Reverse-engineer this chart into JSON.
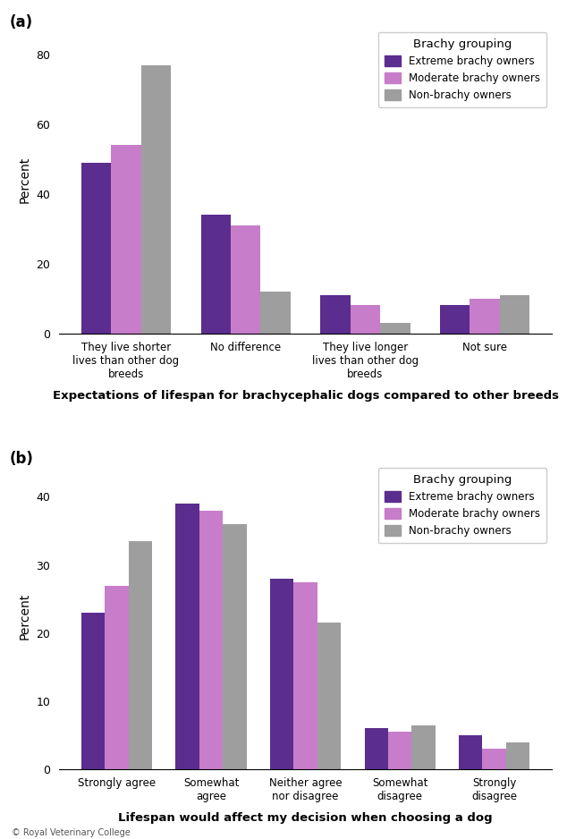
{
  "chart_a": {
    "title": "Expectations of lifespan for brachycephalic dogs compared to other breeds",
    "ylabel": "Percent",
    "categories": [
      "They live shorter\nlives than other dog\nbreeds",
      "No difference",
      "They live longer\nlives than other dog\nbreeds",
      "Not sure"
    ],
    "extreme": [
      49,
      34,
      11,
      8
    ],
    "moderate": [
      54,
      31,
      8,
      10
    ],
    "non": [
      77,
      12,
      3,
      11
    ],
    "ylim": [
      0,
      88
    ],
    "yticks": [
      0,
      20,
      40,
      60,
      80
    ]
  },
  "chart_b": {
    "title": "Lifespan would affect my decision when choosing a dog",
    "ylabel": "Percent",
    "categories": [
      "Strongly agree",
      "Somewhat\nagree",
      "Neither agree\nnor disagree",
      "Somewhat\ndisagree",
      "Strongly\ndisagree"
    ],
    "extreme": [
      23,
      39,
      28,
      6,
      5
    ],
    "moderate": [
      27,
      38,
      27.5,
      5.5,
      3
    ],
    "non": [
      33.5,
      36,
      21.5,
      6.5,
      4
    ],
    "ylim": [
      0,
      45
    ],
    "yticks": [
      0,
      10,
      20,
      30,
      40
    ]
  },
  "colors": {
    "extreme": "#5b2d8e",
    "moderate": "#c77dca",
    "non": "#9e9e9e"
  },
  "bar_width": 0.25,
  "background_color": "#ffffff",
  "label_a": "(a)",
  "label_b": "(b)",
  "watermark": "© Royal Veterinary College"
}
